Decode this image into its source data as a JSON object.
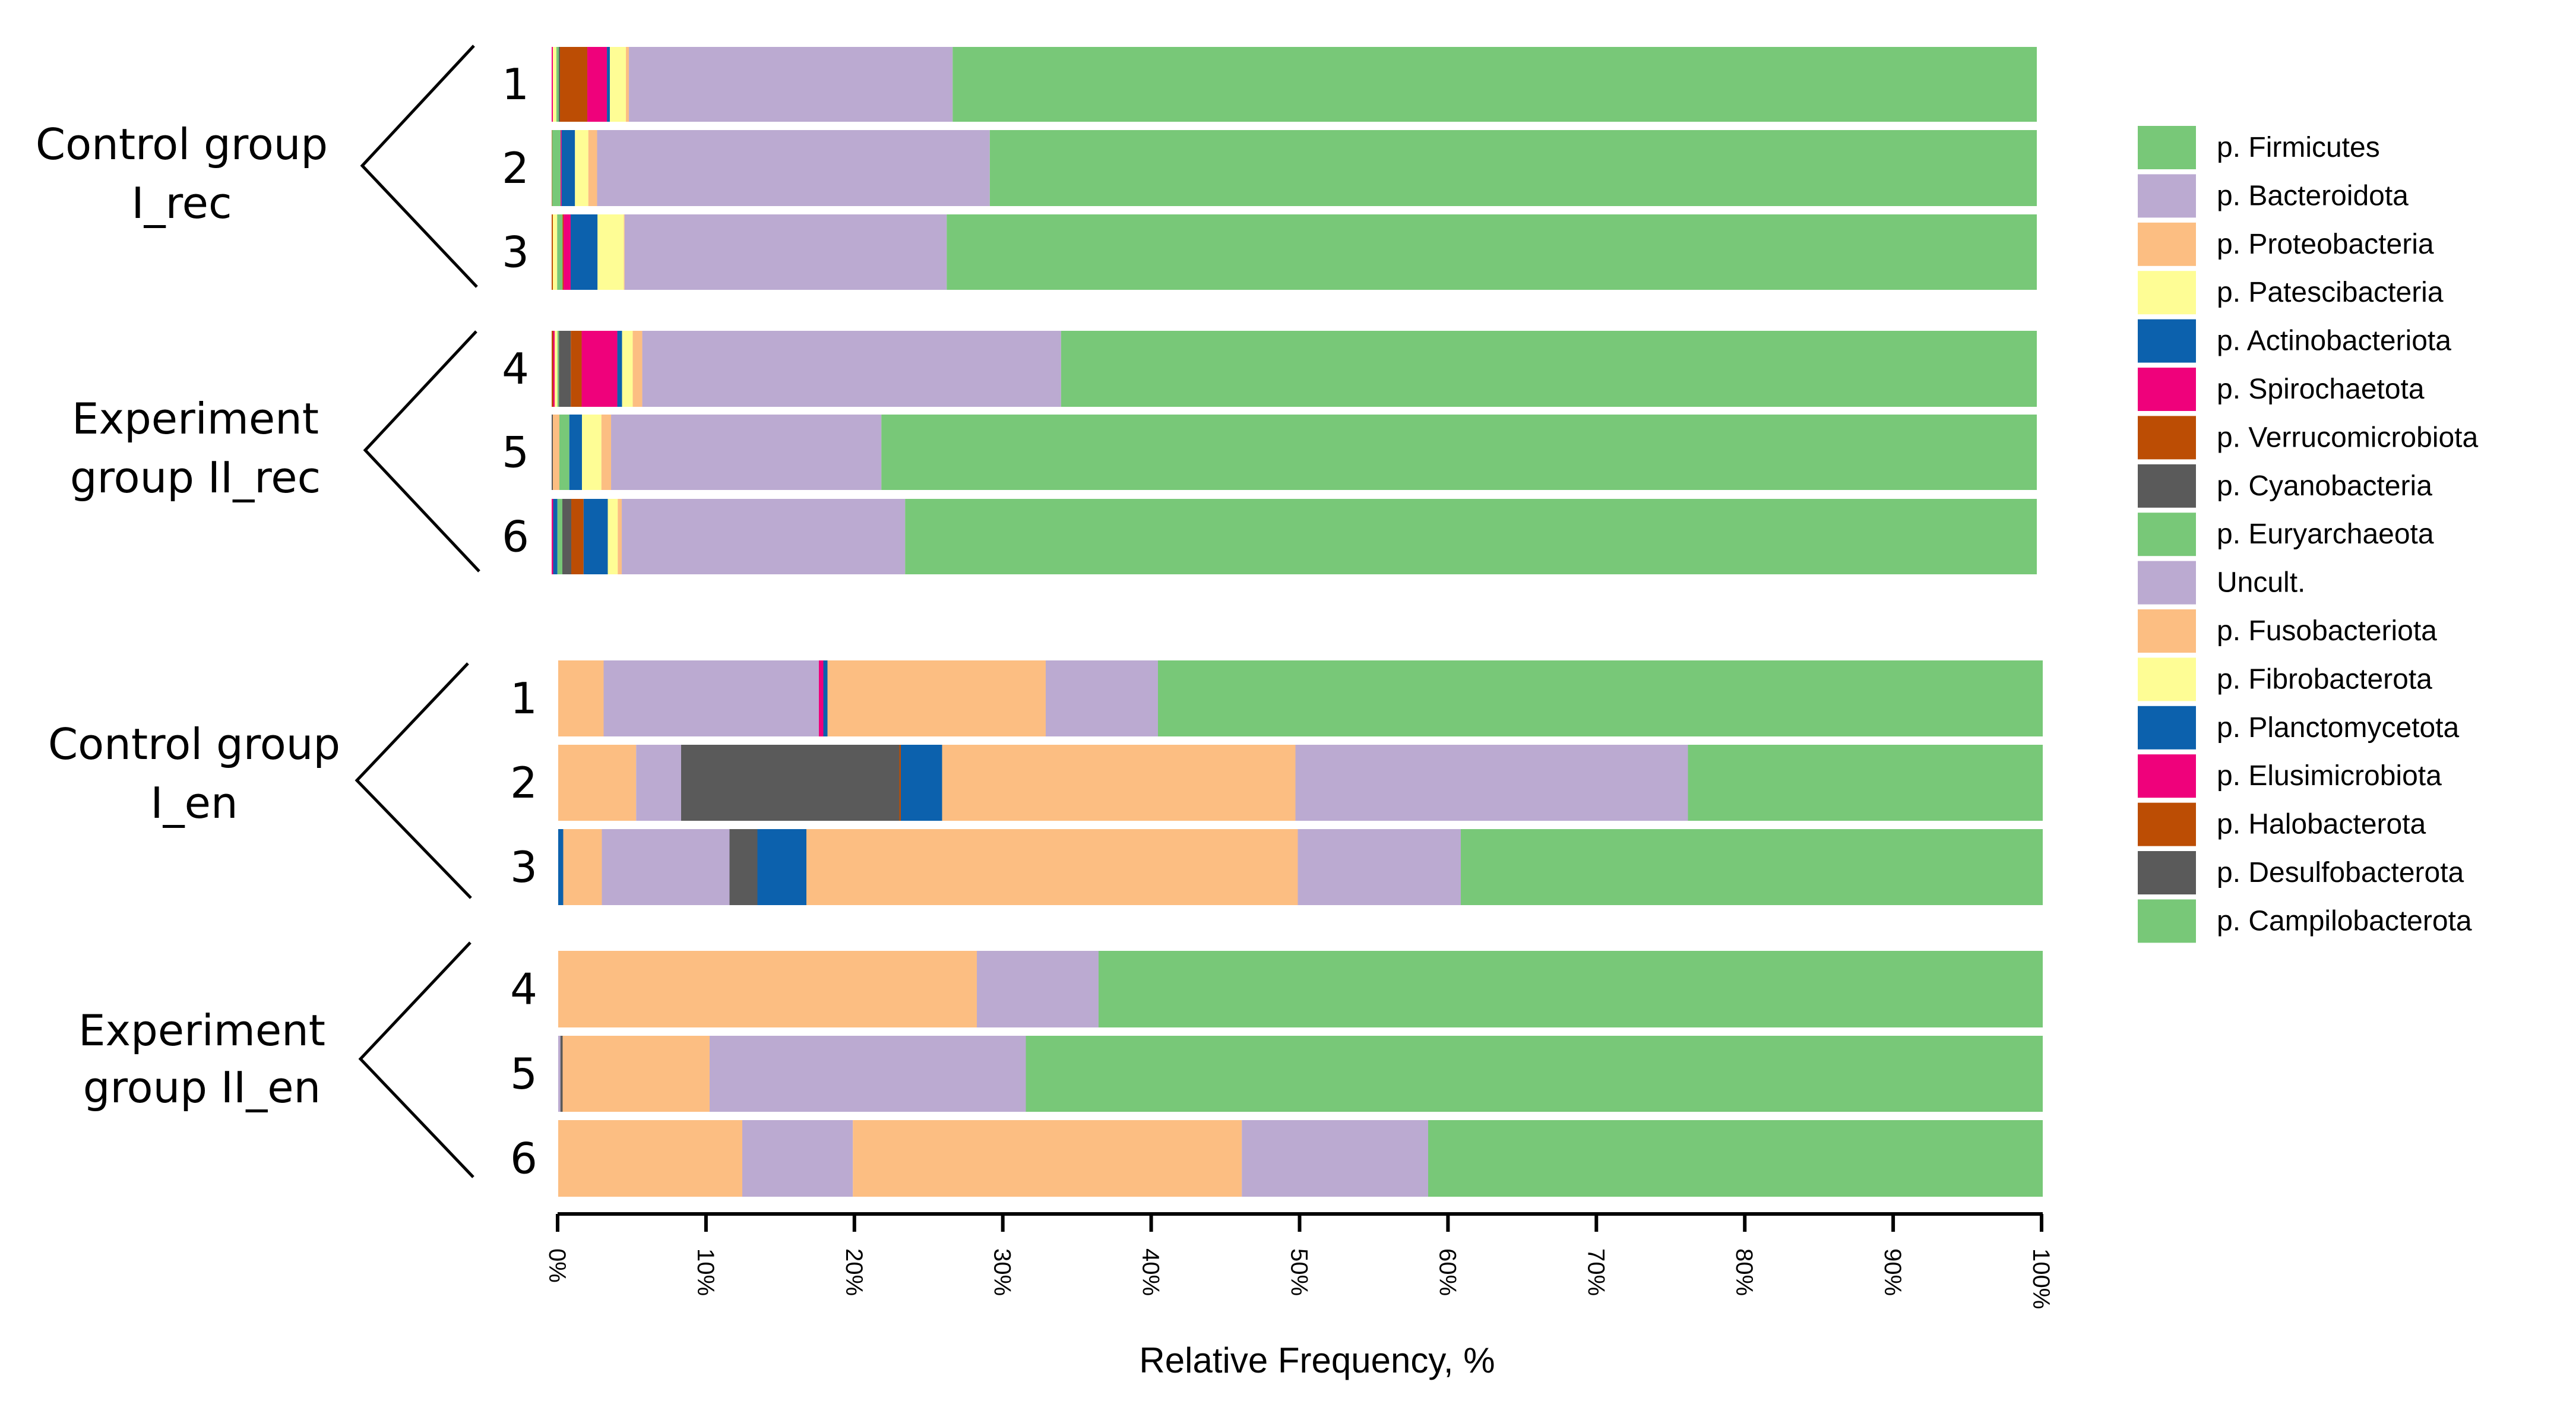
{
  "chart_data": {
    "type": "bar",
    "orientation": "horizontal",
    "stacked": true,
    "xlabel": "Relative Frequency, %",
    "xlim": [
      0,
      100
    ],
    "xticks": [
      "0%",
      "10%",
      "20%",
      "30%",
      "40%",
      "50%",
      "60%",
      "70%",
      "80%",
      "90%",
      "100%"
    ],
    "grid": false,
    "legend_position": "right",
    "colors": {
      "green": "#78c878",
      "purple": "#bbaad1",
      "orange": "#fcbe82",
      "yellow": "#fefd95",
      "blue": "#0c61ad",
      "pink": "#ef017b",
      "brown": "#bc4d04",
      "grey": "#5a5a5a"
    },
    "legend": [
      {
        "label": "p. Firmicutes",
        "color": "green"
      },
      {
        "label": "p. Bacteroidota",
        "color": "purple"
      },
      {
        "label": "p. Proteobacteria",
        "color": "orange"
      },
      {
        "label": "p. Patescibacteria",
        "color": "yellow"
      },
      {
        "label": "p. Actinobacteriota",
        "color": "blue"
      },
      {
        "label": "p. Spirochaetota",
        "color": "pink"
      },
      {
        "label": "p. Verrucomicrobiota",
        "color": "brown"
      },
      {
        "label": "p. Cyanobacteria",
        "color": "grey"
      },
      {
        "label": "p. Euryarchaeota",
        "color": "green"
      },
      {
        "label": "Uncult.",
        "color": "purple"
      },
      {
        "label": "p. Fusobacteriota",
        "color": "orange"
      },
      {
        "label": "p. Fibrobacterota",
        "color": "yellow"
      },
      {
        "label": "p. Planctomycetota",
        "color": "blue"
      },
      {
        "label": "p. Elusimicrobiota",
        "color": "pink"
      },
      {
        "label": "p. Halobacterota",
        "color": "brown"
      },
      {
        "label": "p. Desulfobacterota",
        "color": "grey"
      },
      {
        "label": "p. Campilobacterota",
        "color": "green"
      }
    ],
    "panels": [
      {
        "name": "rec",
        "groups": [
          {
            "label_lines": [
              "Control group",
              "I_rec"
            ],
            "samples": [
              {
                "id": "1",
                "segments": [
                  [
                    "pink",
                    0.08
                  ],
                  [
                    "yellow",
                    0.24
                  ],
                  [
                    "green",
                    0.16
                  ],
                  [
                    "grey",
                    0.08
                  ],
                  [
                    "brown",
                    1.84
                  ],
                  [
                    "pink",
                    1.32
                  ],
                  [
                    "blue",
                    0.2
                  ],
                  [
                    "yellow",
                    1.08
                  ],
                  [
                    "orange",
                    0.2
                  ],
                  [
                    "purple",
                    21.8
                  ],
                  [
                    "green",
                    73.0
                  ]
                ]
              },
              {
                "id": "2",
                "segments": [
                  [
                    "brown",
                    0.03
                  ],
                  [
                    "green",
                    0.57
                  ],
                  [
                    "pink",
                    0.07
                  ],
                  [
                    "blue",
                    0.9
                  ],
                  [
                    "yellow",
                    0.9
                  ],
                  [
                    "orange",
                    0.59
                  ],
                  [
                    "purple",
                    26.44
                  ],
                  [
                    "green",
                    70.5
                  ]
                ]
              },
              {
                "id": "3",
                "segments": [
                  [
                    "brown",
                    0.08
                  ],
                  [
                    "yellow",
                    0.29
                  ],
                  [
                    "green",
                    0.36
                  ],
                  [
                    "brown",
                    0.07
                  ],
                  [
                    "pink",
                    0.48
                  ],
                  [
                    "blue",
                    1.81
                  ],
                  [
                    "yellow",
                    1.77
                  ],
                  [
                    "orange",
                    0.05
                  ],
                  [
                    "purple",
                    21.69
                  ],
                  [
                    "green",
                    73.4
                  ]
                ]
              }
            ]
          },
          {
            "label_lines": [
              "Experiment",
              "group II_rec"
            ],
            "samples": [
              {
                "id": "4",
                "segments": [
                  [
                    "brown",
                    0.1
                  ],
                  [
                    "pink",
                    0.1
                  ],
                  [
                    "yellow",
                    0.19
                  ],
                  [
                    "green",
                    0.1
                  ],
                  [
                    "grey",
                    0.8
                  ],
                  [
                    "brown",
                    0.73
                  ],
                  [
                    "pink",
                    2.4
                  ],
                  [
                    "blue",
                    0.32
                  ],
                  [
                    "yellow",
                    0.72
                  ],
                  [
                    "orange",
                    0.64
                  ],
                  [
                    "purple",
                    28.2
                  ],
                  [
                    "green",
                    65.7
                  ]
                ]
              },
              {
                "id": "5",
                "segments": [
                  [
                    "grey",
                    0.08
                  ],
                  [
                    "orange",
                    0.44
                  ],
                  [
                    "green",
                    0.67
                  ],
                  [
                    "blue",
                    0.85
                  ],
                  [
                    "yellow",
                    1.31
                  ],
                  [
                    "orange",
                    0.65
                  ],
                  [
                    "purple",
                    18.2
                  ],
                  [
                    "green",
                    77.8
                  ]
                ]
              },
              {
                "id": "6",
                "segments": [
                  [
                    "pink",
                    0.1
                  ],
                  [
                    "blue",
                    0.29
                  ],
                  [
                    "green",
                    0.33
                  ],
                  [
                    "grey",
                    0.6
                  ],
                  [
                    "brown",
                    0.83
                  ],
                  [
                    "blue",
                    1.63
                  ],
                  [
                    "yellow",
                    0.67
                  ],
                  [
                    "orange",
                    0.27
                  ],
                  [
                    "purple",
                    19.08
                  ],
                  [
                    "green",
                    76.2
                  ]
                ]
              }
            ]
          }
        ]
      },
      {
        "name": "en",
        "groups": [
          {
            "label_lines": [
              "Control group",
              "I_en"
            ],
            "samples": [
              {
                "id": "1",
                "segments": [
                  [
                    "orange",
                    3.06
                  ],
                  [
                    "purple",
                    14.5
                  ],
                  [
                    "pink",
                    0.3
                  ],
                  [
                    "blue",
                    0.28
                  ],
                  [
                    "orange",
                    14.7
                  ],
                  [
                    "purple",
                    7.56
                  ],
                  [
                    "green",
                    59.6
                  ]
                ]
              },
              {
                "id": "2",
                "segments": [
                  [
                    "orange",
                    5.25
                  ],
                  [
                    "purple",
                    3.03
                  ],
                  [
                    "grey",
                    14.7
                  ],
                  [
                    "brown",
                    0.1
                  ],
                  [
                    "blue",
                    2.78
                  ],
                  [
                    "orange",
                    23.8
                  ],
                  [
                    "purple",
                    26.44
                  ],
                  [
                    "green",
                    23.9
                  ]
                ]
              },
              {
                "id": "3",
                "segments": [
                  [
                    "blue",
                    0.34
                  ],
                  [
                    "orange",
                    2.6
                  ],
                  [
                    "purple",
                    8.6
                  ],
                  [
                    "grey",
                    1.88
                  ],
                  [
                    "blue",
                    3.3
                  ],
                  [
                    "orange",
                    33.1
                  ],
                  [
                    "purple",
                    10.98
                  ],
                  [
                    "green",
                    39.2
                  ]
                ]
              }
            ]
          },
          {
            "label_lines": [
              "Experiment",
              "group II_en"
            ],
            "samples": [
              {
                "id": "4",
                "segments": [
                  [
                    "orange",
                    28.2
                  ],
                  [
                    "purple",
                    8.2
                  ],
                  [
                    "green",
                    63.6
                  ]
                ]
              },
              {
                "id": "5",
                "segments": [
                  [
                    "purple",
                    0.15
                  ],
                  [
                    "grey",
                    0.15
                  ],
                  [
                    "orange",
                    9.9
                  ],
                  [
                    "purple",
                    21.3
                  ],
                  [
                    "green",
                    68.5
                  ]
                ]
              },
              {
                "id": "6",
                "segments": [
                  [
                    "orange",
                    12.4
                  ],
                  [
                    "purple",
                    7.45
                  ],
                  [
                    "orange",
                    26.2
                  ],
                  [
                    "purple",
                    12.55
                  ],
                  [
                    "green",
                    41.4
                  ]
                ]
              }
            ]
          }
        ]
      }
    ]
  }
}
